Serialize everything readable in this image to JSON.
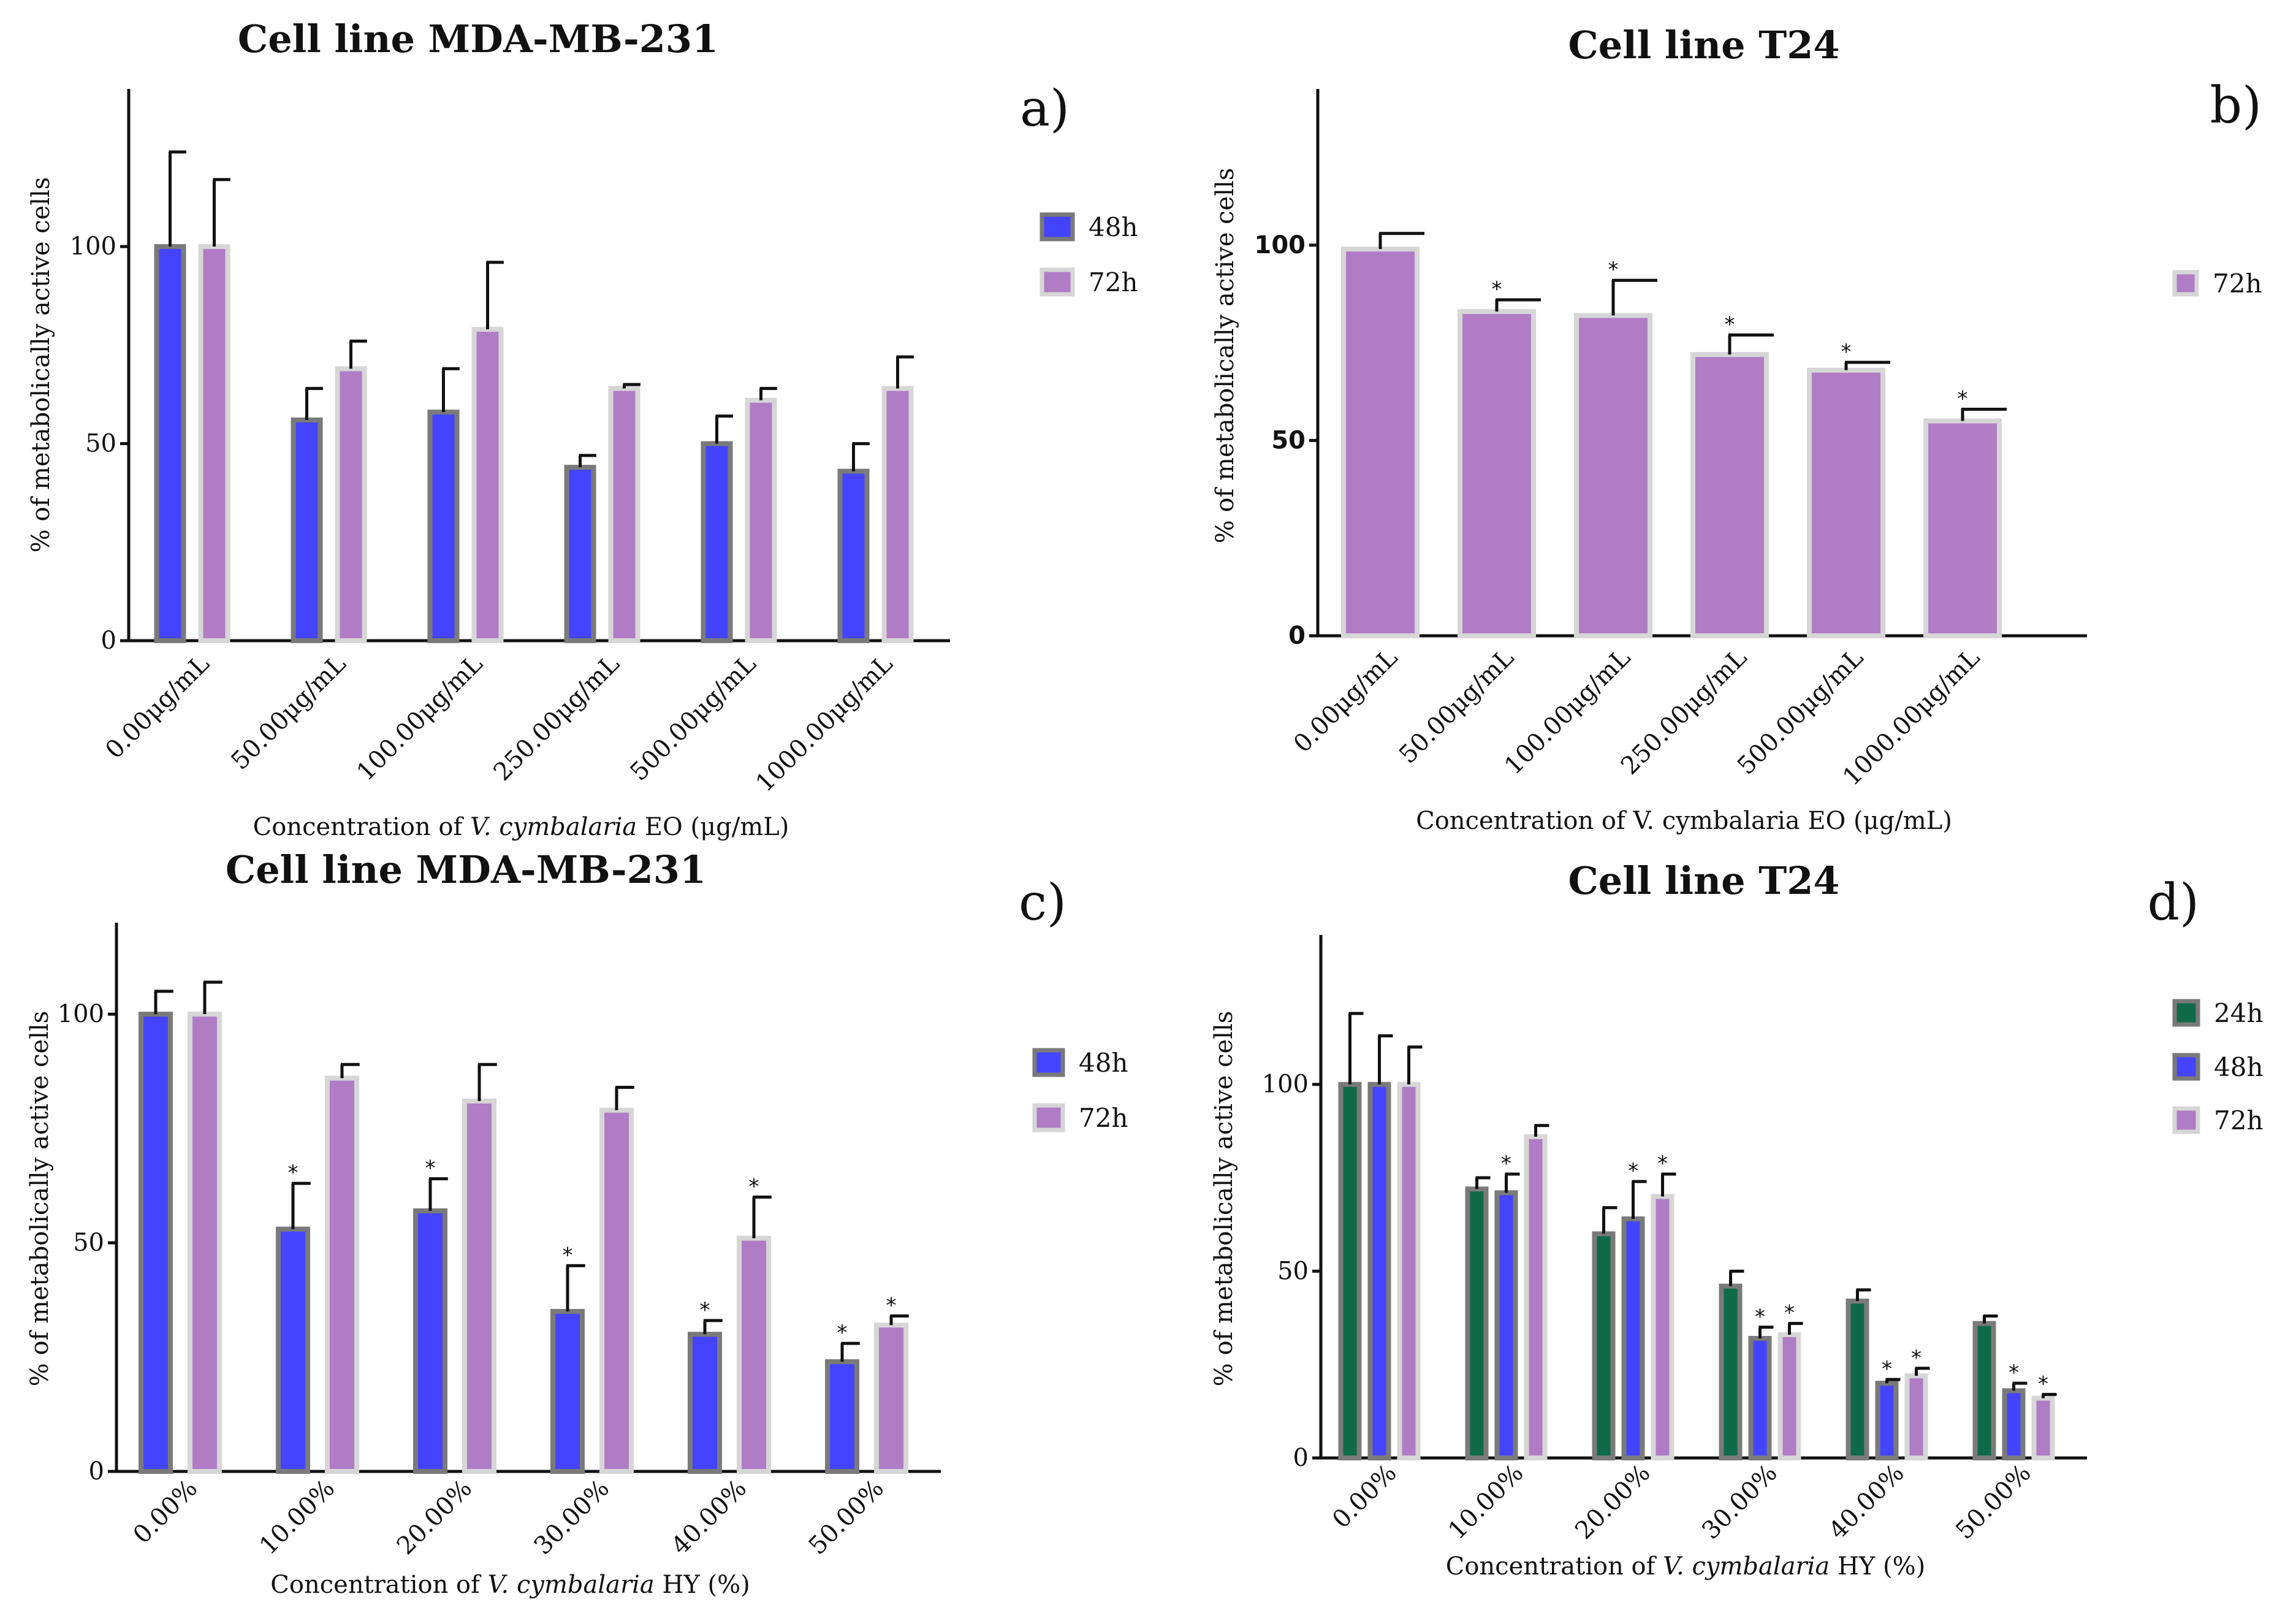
{
  "colors": {
    "h24": "#0f6a4a",
    "h48": "#4444ff",
    "h72": "#b07cc6",
    "border_dark": "#7a7a7a",
    "border_light": "#d6d6d6"
  },
  "chart_data": [
    {
      "type": "bar",
      "panel_label": "a)",
      "title": "Cell line MDA-MB-231",
      "xlabel_parts": [
        "Concentration of ",
        "V. cymbalaria",
        " EO (μg/mL)"
      ],
      "ylabel": "% of metabolically active cells",
      "ylim": [
        0,
        140
      ],
      "yticks": [
        "0",
        "50",
        "100"
      ],
      "legend_position": "right",
      "categories": [
        "0.00μg/mL",
        "50.00μg/mL",
        "100.00μg/mL",
        "250.00μg/mL",
        "500.00μg/mL",
        "1000.00μg/mL"
      ],
      "series": [
        {
          "name": "48h",
          "color_key": "h48",
          "values": [
            100,
            56,
            58,
            44,
            50,
            43
          ],
          "errors": [
            24,
            8,
            11,
            3,
            7,
            7
          ],
          "stars": [
            false,
            false,
            false,
            false,
            false,
            false
          ]
        },
        {
          "name": "72h",
          "color_key": "h72",
          "values": [
            100,
            69,
            79,
            64,
            61,
            64
          ],
          "errors": [
            17,
            7,
            17,
            1,
            3,
            8
          ],
          "stars": [
            false,
            false,
            false,
            false,
            false,
            false
          ]
        }
      ]
    },
    {
      "type": "bar",
      "panel_label": "b)",
      "title": "Cell line T24",
      "xlabel_parts": [
        "Concentration of V. cymbalaria EO (μg/mL)"
      ],
      "ylabel": "% of metabolically active cells",
      "ylim": [
        0,
        140
      ],
      "yticks": [
        "0",
        "50",
        "100"
      ],
      "legend_position": "right",
      "categories": [
        "0.00μg/mL",
        "50.00μg/mL",
        "100.00μg/mL",
        "250.00μg/mL",
        "500.00μg/mL",
        "1000.00μg/mL"
      ],
      "series": [
        {
          "name": "72h",
          "color_key": "h72",
          "values": [
            99,
            83,
            82,
            72,
            68,
            55
          ],
          "errors": [
            4,
            3,
            9,
            5,
            2,
            3
          ],
          "stars": [
            false,
            true,
            true,
            true,
            true,
            true
          ]
        }
      ]
    },
    {
      "type": "bar",
      "panel_label": "c)",
      "title": "Cell line MDA-MB-231",
      "xlabel_parts": [
        "Concentration of ",
        "V. cymbalaria",
        " HY (%)"
      ],
      "ylabel": "% of metabolically active cells",
      "ylim": [
        0,
        120
      ],
      "yticks": [
        "0",
        "50",
        "100"
      ],
      "legend_position": "right",
      "categories": [
        "0.00%",
        "10.00%",
        "20.00%",
        "30.00%",
        "40.00%",
        "50.00%"
      ],
      "series": [
        {
          "name": "48h",
          "color_key": "h48",
          "values": [
            100,
            53,
            57,
            35,
            30,
            24
          ],
          "errors": [
            5,
            10,
            7,
            10,
            3,
            4
          ],
          "stars": [
            false,
            true,
            true,
            true,
            true,
            true
          ]
        },
        {
          "name": "72h",
          "color_key": "h72",
          "values": [
            100,
            86,
            81,
            79,
            51,
            32
          ],
          "errors": [
            7,
            3,
            8,
            5,
            9,
            2
          ],
          "stars": [
            false,
            false,
            false,
            false,
            true,
            true
          ]
        }
      ]
    },
    {
      "type": "bar",
      "panel_label": "d)",
      "title": "Cell line T24",
      "xlabel_parts": [
        "Concentration of ",
        "V. cymbalaria",
        " HY (%)"
      ],
      "ylabel": "% of metabolically active cells",
      "ylim": [
        0,
        140
      ],
      "yticks": [
        "0",
        "50",
        "100"
      ],
      "legend_position": "right",
      "categories": [
        "0.00%",
        "10.00%",
        "20.00%",
        "30.00%",
        "40.00%",
        "50.00%"
      ],
      "series": [
        {
          "name": "24h",
          "color_key": "h24",
          "values": [
            100,
            72,
            60,
            46,
            42,
            36
          ],
          "errors": [
            19,
            3,
            7,
            4,
            3,
            2
          ],
          "stars": [
            false,
            false,
            false,
            false,
            false,
            false
          ]
        },
        {
          "name": "48h",
          "color_key": "h48",
          "values": [
            100,
            71,
            64,
            32,
            20,
            18
          ],
          "errors": [
            13,
            5,
            10,
            3,
            1,
            2
          ],
          "stars": [
            false,
            true,
            true,
            true,
            true,
            true
          ]
        },
        {
          "name": "72h",
          "color_key": "h72",
          "values": [
            100,
            86,
            70,
            33,
            22,
            16
          ],
          "errors": [
            10,
            3,
            6,
            3,
            2,
            1
          ],
          "stars": [
            false,
            false,
            true,
            true,
            true,
            true
          ]
        }
      ]
    }
  ]
}
